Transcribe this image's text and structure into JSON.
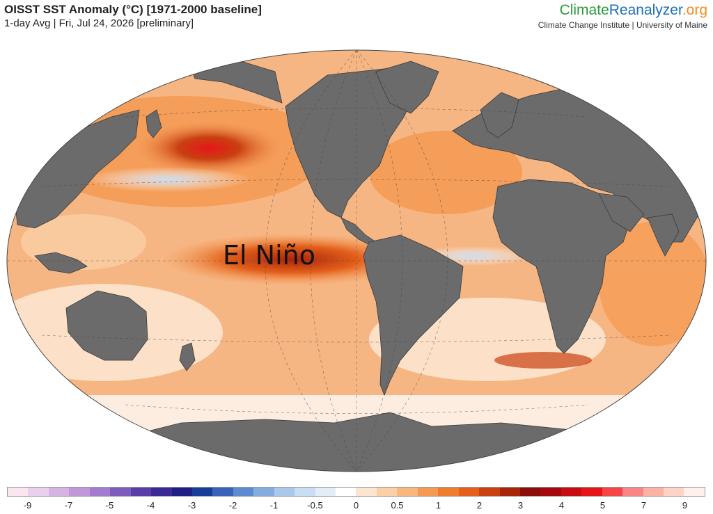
{
  "header": {
    "title": "OISST SST Anomaly (°C) [1971-2000 baseline]",
    "subtitle": "1-day Avg | Fri, Jul 24, 2026 [preliminary]"
  },
  "brand": {
    "part1": "Climate",
    "part2": "Reanalyzer",
    "part3": ".org",
    "subtitle": "Climate Change Institute | University of Maine"
  },
  "map": {
    "label": "El Niño",
    "ocean_anomaly_color": "#f2a25e",
    "land_color": "#6b6b6b"
  },
  "colorbar": {
    "colors": [
      "#fbe6f0",
      "#ead0ec",
      "#d6b3e3",
      "#bf98da",
      "#a47bce",
      "#7d5cbd",
      "#5a3ea8",
      "#3b2a96",
      "#1f1f85",
      "#1b3d9a",
      "#3a62b8",
      "#5e8ad0",
      "#84acdf",
      "#a9c8eb",
      "#c9ddf3",
      "#e2edf8",
      "#ffffff",
      "#fde6cf",
      "#fbd0a6",
      "#f8b77c",
      "#f59a52",
      "#ef7d2e",
      "#e35f1a",
      "#c94011",
      "#a8250c",
      "#8a0f0a",
      "#a3090e",
      "#c70d12",
      "#e5161a",
      "#f54545",
      "#f98686",
      "#fcb3a3",
      "#fdd4c5",
      "#fff0ec"
    ],
    "tick_labels": [
      "-9",
      "-7",
      "-5",
      "-4",
      "-3",
      "-2",
      "-1",
      "-0.5",
      "0",
      "0.5",
      "1",
      "2",
      "3",
      "4",
      "5",
      "7",
      "9"
    ]
  }
}
